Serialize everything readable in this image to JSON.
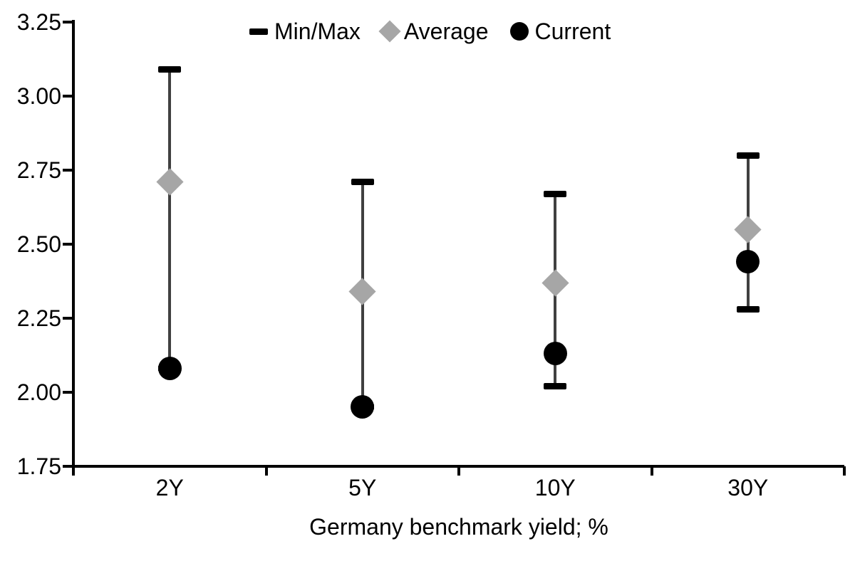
{
  "chart_data": {
    "type": "range",
    "title": "",
    "xlabel": "Germany benchmark yield; %",
    "categories": [
      "2Y",
      "5Y",
      "10Y",
      "30Y"
    ],
    "ylim": [
      1.75,
      3.25
    ],
    "ytick_step": 0.25,
    "ytick_labels": [
      "3.25",
      "3.00",
      "2.75",
      "2.50",
      "2.25",
      "2.00",
      "1.75"
    ],
    "grid": false,
    "legend_position": "top",
    "legend": [
      {
        "label": "Min/Max",
        "marker": "dash",
        "color": "#000000"
      },
      {
        "label": "Average",
        "marker": "diamond",
        "color": "#a6a6a6"
      },
      {
        "label": "Current",
        "marker": "circle",
        "color": "#000000"
      }
    ],
    "series": [
      {
        "name": "Min/Max",
        "type": "range",
        "min": [
          2.08,
          1.95,
          2.02,
          2.28
        ],
        "max": [
          3.09,
          2.71,
          2.67,
          2.8
        ]
      },
      {
        "name": "Average",
        "type": "point",
        "marker": "diamond",
        "values": [
          2.71,
          2.34,
          2.37,
          2.55
        ]
      },
      {
        "name": "Current",
        "type": "point",
        "marker": "circle",
        "values": [
          2.08,
          1.95,
          2.13,
          2.44
        ]
      }
    ],
    "colors": {
      "range_line": "#404040",
      "cap": "#000000",
      "average": "#a6a6a6",
      "current": "#000000",
      "text": "#000000"
    }
  }
}
